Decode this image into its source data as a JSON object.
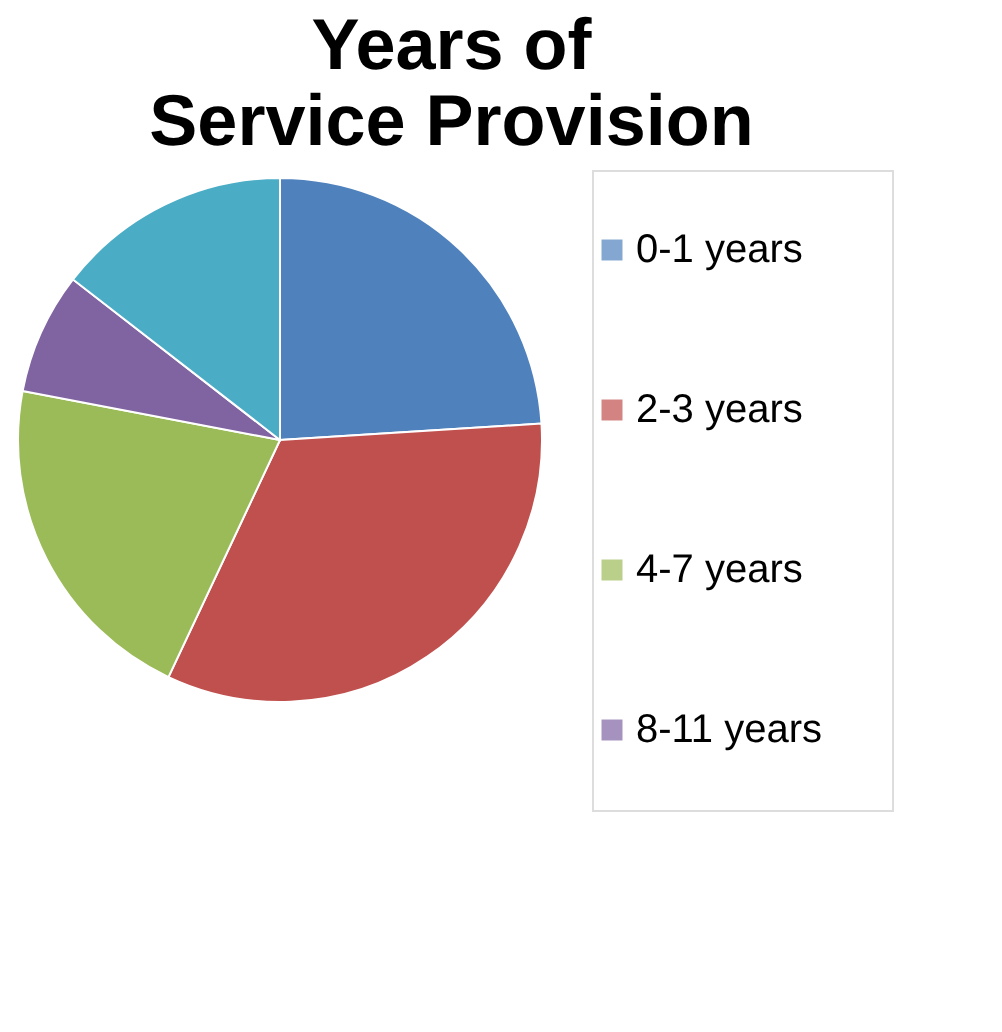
{
  "chart_data": {
    "type": "pie",
    "title": "Years of Service Provision",
    "categories": [
      "0-1 years",
      "2-3 years",
      "4-7 years",
      "8-11 years",
      null
    ],
    "values": [
      24,
      33,
      21,
      7.5,
      14.5
    ],
    "colors": [
      "#4f81bd",
      "#c0504d",
      "#9bbb59",
      "#8064a2",
      "#4bacc6"
    ],
    "legend": "right"
  }
}
